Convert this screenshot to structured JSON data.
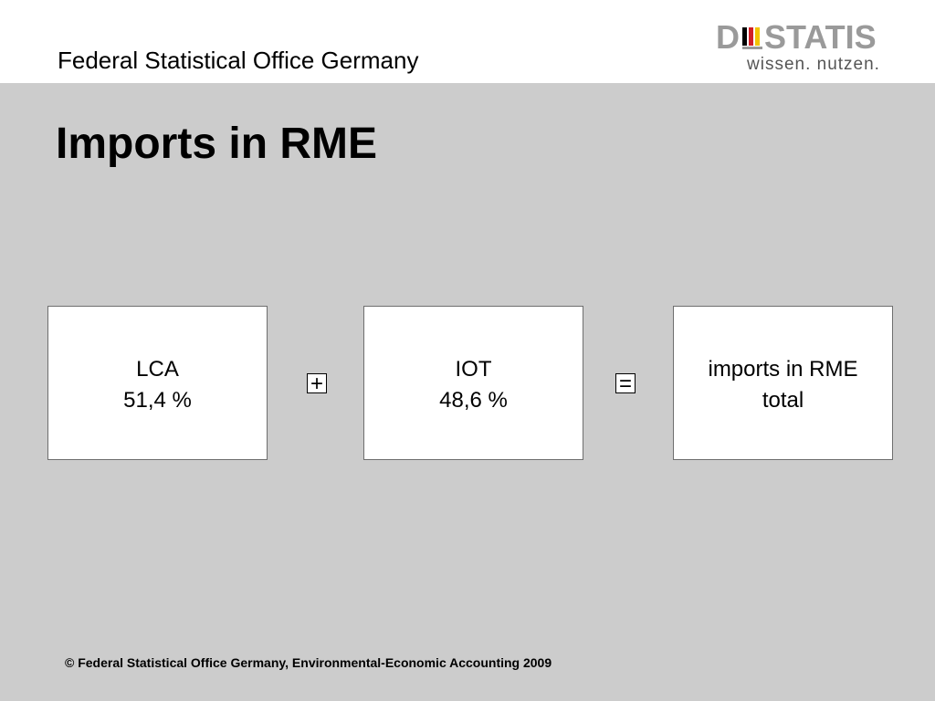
{
  "header": {
    "org_name": "Federal Statistical Office Germany",
    "logo": {
      "wordmark_left": "D",
      "wordmark_right": "STATIS",
      "tagline": "wissen. nutzen.",
      "colors": {
        "wordmark": "#9a9a9a",
        "tagline": "#555555",
        "bar_black": "#000000",
        "bar_red": "#d11f26",
        "bar_gold": "#f2c300"
      }
    }
  },
  "slide": {
    "title": "Imports in RME",
    "background_color": "#cccccc",
    "boxes": [
      {
        "label": "LCA",
        "value": "51,4 %"
      },
      {
        "label": "IOT",
        "value": "48,6 %"
      },
      {
        "label": "imports in RME",
        "value": "total"
      }
    ],
    "operators": {
      "plus": "+",
      "equals": "="
    }
  },
  "footer": {
    "copyright": "© Federal Statistical Office Germany, Environmental-Economic Accounting 2009"
  }
}
